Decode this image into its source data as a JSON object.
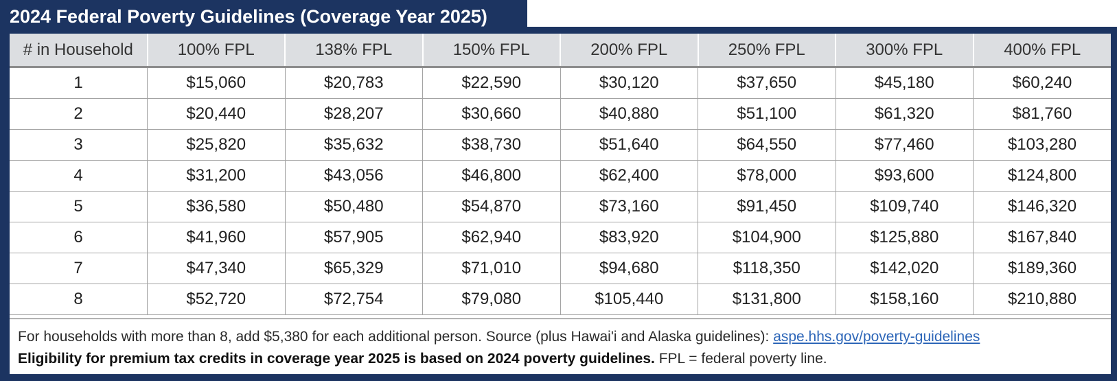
{
  "title": "2024 Federal Poverty Guidelines (Coverage Year 2025)",
  "table": {
    "headers": [
      "# in Household",
      "100% FPL",
      "138% FPL",
      "150% FPL",
      "200% FPL",
      "250% FPL",
      "300% FPL",
      "400% FPL"
    ],
    "rows": [
      [
        "1",
        "$15,060",
        "$20,783",
        "$22,590",
        "$30,120",
        "$37,650",
        "$45,180",
        "$60,240"
      ],
      [
        "2",
        "$20,440",
        "$28,207",
        "$30,660",
        "$40,880",
        "$51,100",
        "$61,320",
        "$81,760"
      ],
      [
        "3",
        "$25,820",
        "$35,632",
        "$38,730",
        "$51,640",
        "$64,550",
        "$77,460",
        "$103,280"
      ],
      [
        "4",
        "$31,200",
        "$43,056",
        "$46,800",
        "$62,400",
        "$78,000",
        "$93,600",
        "$124,800"
      ],
      [
        "5",
        "$36,580",
        "$50,480",
        "$54,870",
        "$73,160",
        "$91,450",
        "$109,740",
        "$146,320"
      ],
      [
        "6",
        "$41,960",
        "$57,905",
        "$62,940",
        "$83,920",
        "$104,900",
        "$125,880",
        "$167,840"
      ],
      [
        "7",
        "$47,340",
        "$65,329",
        "$71,010",
        "$94,680",
        "$118,350",
        "$142,020",
        "$189,360"
      ],
      [
        "8",
        "$52,720",
        "$72,754",
        "$79,080",
        "$105,440",
        "$131,800",
        "$158,160",
        "$210,880"
      ]
    ]
  },
  "footer": {
    "line1_text": "For households with more than 8, add $5,380 for each additional person.  Source (plus Hawai'i and Alaska guidelines): ",
    "link_text": "aspe.hhs.gov/poverty-guidelines",
    "line2_bold": "Eligibility for premium tax credits in coverage year 2025 is based on 2024 poverty guidelines.",
    "line2_text": "  FPL = federal poverty line."
  },
  "colors": {
    "frame": "#1c3461",
    "header_bg": "#dcdee1",
    "link": "#2d66b8"
  }
}
